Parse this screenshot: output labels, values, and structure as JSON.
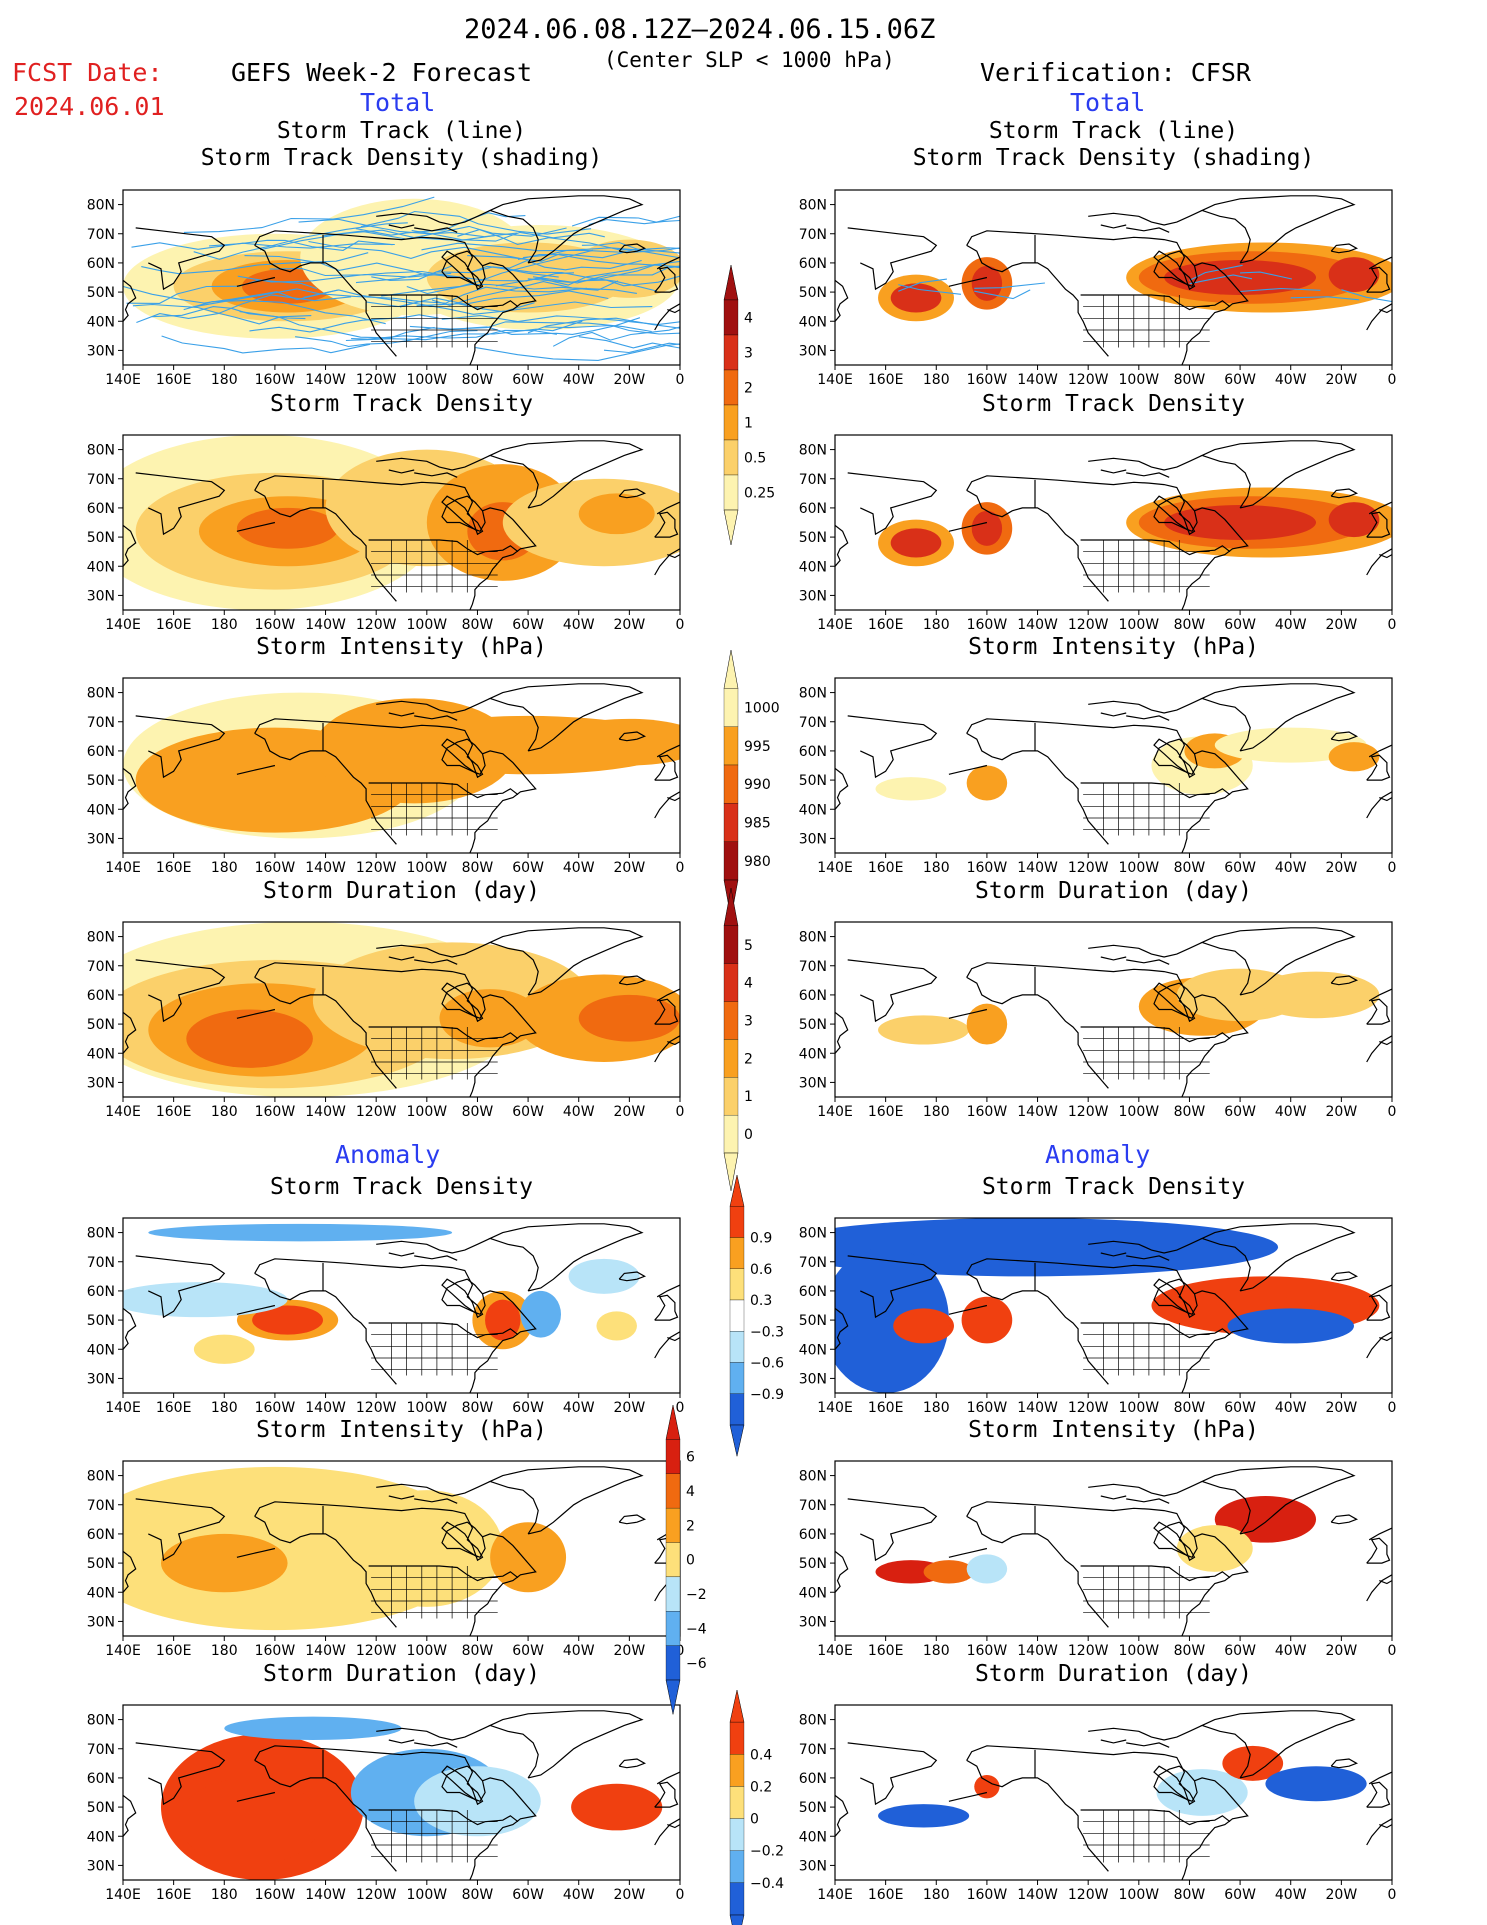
{
  "header": {
    "period": "2024.06.08.12Z–2024.06.15.06Z",
    "condition": "(Center SLP < 1000 hPa)",
    "fcst_label": "FCST Date:",
    "fcst_date": "2024.06.01",
    "forecast_title": "GEFS Week-2 Forecast",
    "verification_title": "Verification: CFSR",
    "total_left": "Total",
    "total_right": "Total",
    "anomaly_left": "Anomaly",
    "anomaly_right": "Anomaly"
  },
  "axes": {
    "lon_labels": [
      "140E",
      "160E",
      "180",
      "160W",
      "140W",
      "120W",
      "100W",
      "80W",
      "60W",
      "40W",
      "20W",
      "0"
    ],
    "lat_labels": [
      "80N",
      "70N",
      "60N",
      "50N",
      "40N",
      "30N"
    ]
  },
  "panels": {
    "left": [
      {
        "title1": "Storm Track (line)",
        "title2": "Storm Track Density (shading)"
      },
      {
        "title1": "Storm Track Density"
      },
      {
        "title1": "Storm Intensity (hPa)"
      },
      {
        "title1": "Storm Duration (day)"
      },
      {
        "title1": "Storm Track Density"
      },
      {
        "title1": "Storm Intensity (hPa)"
      },
      {
        "title1": "Storm Duration (day)"
      }
    ],
    "right": [
      {
        "title1": "Storm Track (line)",
        "title2": "Storm Track Density (shading)"
      },
      {
        "title1": "Storm Track Density"
      },
      {
        "title1": "Storm Intensity (hPa)"
      },
      {
        "title1": "Storm Duration (day)"
      },
      {
        "title1": "Storm Track Density"
      },
      {
        "title1": "Storm Intensity (hPa)"
      },
      {
        "title1": "Storm Duration (day)"
      }
    ]
  },
  "colorbars": {
    "density": {
      "labels": [
        "4",
        "3",
        "2",
        "1",
        "0.5",
        "0.25"
      ],
      "colors": [
        "#a01010",
        "#d93018",
        "#f06a10",
        "#f9a020",
        "#fbd06a",
        "#fdf3b0"
      ]
    },
    "intensity": {
      "labels": [
        "1000",
        "995",
        "990",
        "985",
        "980"
      ],
      "colors": [
        "#fdf3b0",
        "#f9a020",
        "#f06a10",
        "#d93018",
        "#a01010"
      ]
    },
    "duration": {
      "labels": [
        "5",
        "4",
        "3",
        "2",
        "1",
        "0"
      ],
      "colors": [
        "#a01010",
        "#d93018",
        "#f06a10",
        "#f9a020",
        "#fbd06a",
        "#fdf3b0"
      ]
    },
    "anom_density": {
      "labels": [
        "0.9",
        "0.6",
        "0.3",
        "−0.3",
        "−0.6",
        "−0.9"
      ],
      "colors": [
        "#f04010",
        "#f9a020",
        "#fde07a",
        "#ffffff",
        "#b8e4f8",
        "#60b0f0",
        "#2060d8"
      ]
    },
    "anom_intensity": {
      "labels": [
        "6",
        "4",
        "2",
        "0",
        "−2",
        "−4",
        "−6"
      ],
      "colors": [
        "#d82010",
        "#f06a10",
        "#f9a020",
        "#fde07a",
        "#b8e4f8",
        "#60b0f0",
        "#2060d8"
      ]
    },
    "anom_duration": {
      "labels": [
        "0.4",
        "0.2",
        "0",
        "−0.2",
        "−0.4"
      ],
      "colors": [
        "#f04010",
        "#f9a020",
        "#fde07a",
        "#b8e4f8",
        "#60b0f0",
        "#2060d8"
      ]
    }
  },
  "colors": {
    "ocean": "#ffffff",
    "coast": "#000000",
    "track_line": "#3aa0e8"
  }
}
